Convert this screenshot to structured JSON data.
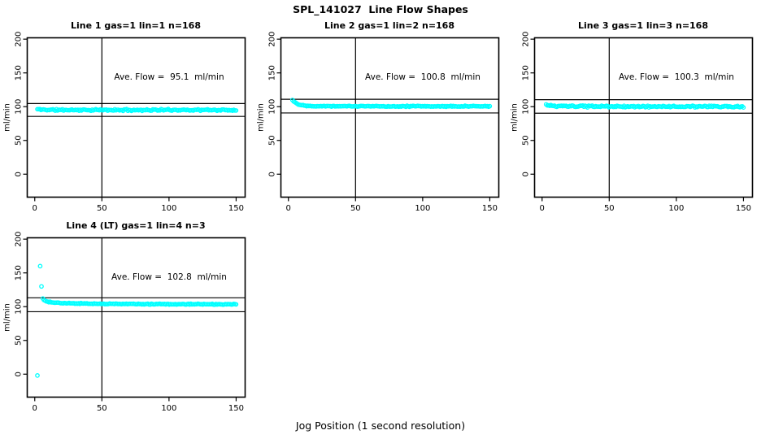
{
  "title": "SPL_141027  Line Flow Shapes",
  "xlabel": "Jog Position (1 second resolution)",
  "colors": {
    "points": "#00FFFF",
    "lines": "#000000",
    "background": "#FFFFFF"
  },
  "chart_data": [
    {
      "type": "scatter",
      "title": "Line 1 gas=1 lin=1 n=168",
      "annotation": "Ave. Flow =  95.1  ml/min",
      "ave_flow_ml_min": 95.1,
      "n": 168,
      "ylabel": "ml/min",
      "x_ticks": [
        0,
        50,
        100,
        150
      ],
      "y_ticks": [
        0,
        50,
        100,
        150,
        200
      ],
      "xlim": [
        -5.6,
        156.7
      ],
      "ylim": [
        -34,
        202
      ],
      "vline_x": 50,
      "hlines": [
        104.6,
        85.6
      ],
      "marker": "open-circle",
      "point_color": "#00FFFF",
      "grid": false,
      "band": {
        "x_start": 2,
        "x_end": 150,
        "points": 168,
        "noise": 1.5,
        "profile": [
          [
            2,
            96.2
          ],
          [
            5,
            95.6
          ],
          [
            15,
            95.2
          ],
          [
            60,
            95.0
          ],
          [
            110,
            95.2
          ],
          [
            150,
            94.9
          ]
        ]
      },
      "outliers": [],
      "seed": 11
    },
    {
      "type": "scatter",
      "title": "Line 2 gas=1 lin=2 n=168",
      "annotation": "Ave. Flow =  100.8  ml/min",
      "ave_flow_ml_min": 100.8,
      "n": 168,
      "ylabel": "ml/min",
      "x_ticks": [
        0,
        50,
        100,
        150
      ],
      "y_ticks": [
        0,
        50,
        100,
        150,
        200
      ],
      "xlim": [
        -5.6,
        156.7
      ],
      "ylim": [
        -34,
        202
      ],
      "vline_x": 50,
      "hlines": [
        110.9,
        90.7
      ],
      "marker": "open-circle",
      "point_color": "#00FFFF",
      "grid": false,
      "band": {
        "x_start": 3,
        "x_end": 150,
        "points": 168,
        "noise": 0.9,
        "profile": [
          [
            3,
            110
          ],
          [
            4,
            108
          ],
          [
            5,
            106
          ],
          [
            8,
            103.2
          ],
          [
            12,
            101.6
          ],
          [
            20,
            100.9
          ],
          [
            60,
            100.6
          ],
          [
            150,
            100.5
          ]
        ]
      },
      "outliers": [],
      "seed": 22
    },
    {
      "type": "scatter",
      "title": "Line 3 gas=1 lin=3 n=168",
      "annotation": "Ave. Flow =  100.3  ml/min",
      "ave_flow_ml_min": 100.3,
      "n": 168,
      "ylabel": "ml/min",
      "x_ticks": [
        0,
        50,
        100,
        150
      ],
      "y_ticks": [
        0,
        50,
        100,
        150,
        200
      ],
      "xlim": [
        -5.6,
        156.7
      ],
      "ylim": [
        -34,
        202
      ],
      "vline_x": 50,
      "hlines": [
        110.3,
        90.3
      ],
      "marker": "open-circle",
      "point_color": "#00FFFF",
      "grid": false,
      "band": {
        "x_start": 3,
        "x_end": 150,
        "points": 168,
        "noise": 1.5,
        "profile": [
          [
            3,
            103
          ],
          [
            5,
            101.5
          ],
          [
            10,
            100.7
          ],
          [
            40,
            100.3
          ],
          [
            150,
            100.1
          ]
        ]
      },
      "outliers": [],
      "seed": 33
    },
    {
      "type": "scatter",
      "title": "Line 4 (LT) gas=1 lin=4 n=3",
      "annotation": "Ave. Flow =  102.8  ml/min",
      "ave_flow_ml_min": 102.8,
      "n": 3,
      "ylabel": "ml/min",
      "x_ticks": [
        0,
        50,
        100,
        150
      ],
      "y_ticks": [
        0,
        50,
        100,
        150,
        200
      ],
      "xlim": [
        -5.6,
        156.7
      ],
      "ylim": [
        -34,
        202
      ],
      "vline_x": 50,
      "hlines": [
        113.1,
        92.5
      ],
      "marker": "open-circle",
      "point_color": "#00FFFF",
      "grid": false,
      "band": {
        "x_start": 6,
        "x_end": 150,
        "points": 163,
        "noise": 0.8,
        "profile": [
          [
            6,
            112
          ],
          [
            7,
            109.5
          ],
          [
            9,
            107.5
          ],
          [
            14,
            106
          ],
          [
            25,
            105
          ],
          [
            50,
            104.2
          ],
          [
            100,
            103.7
          ],
          [
            150,
            103.4
          ]
        ]
      },
      "outliers": [
        [
          2,
          -2
        ],
        [
          4,
          160
        ],
        [
          5,
          130
        ]
      ],
      "seed": 44
    }
  ]
}
